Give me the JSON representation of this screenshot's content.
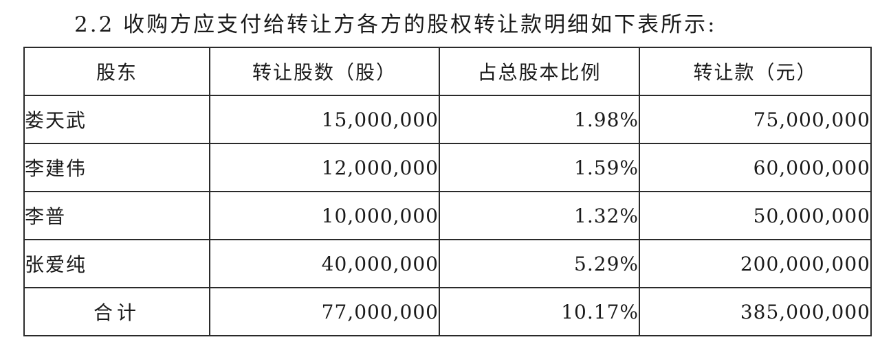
{
  "heading": "2.2 收购方应支付给转让方各方的股权转让款明细如下表所示:",
  "table": {
    "headers": [
      "股东",
      "转让股数（股）",
      "占总股本比例",
      "转让款（元）"
    ],
    "rows": [
      {
        "shareholder": "娄天武",
        "shares": "15,000,000",
        "ratio": "1.98%",
        "amount": "75,000,000"
      },
      {
        "shareholder": "李建伟",
        "shares": "12,000,000",
        "ratio": "1.59%",
        "amount": "60,000,000"
      },
      {
        "shareholder": "李普",
        "shares": "10,000,000",
        "ratio": "1.32%",
        "amount": "50,000,000"
      },
      {
        "shareholder": "张爱纯",
        "shares": "40,000,000",
        "ratio": "5.29%",
        "amount": "200,000,000"
      }
    ],
    "total": {
      "label": "合计",
      "shares": "77,000,000",
      "ratio": "10.17%",
      "amount": "385,000,000"
    }
  }
}
